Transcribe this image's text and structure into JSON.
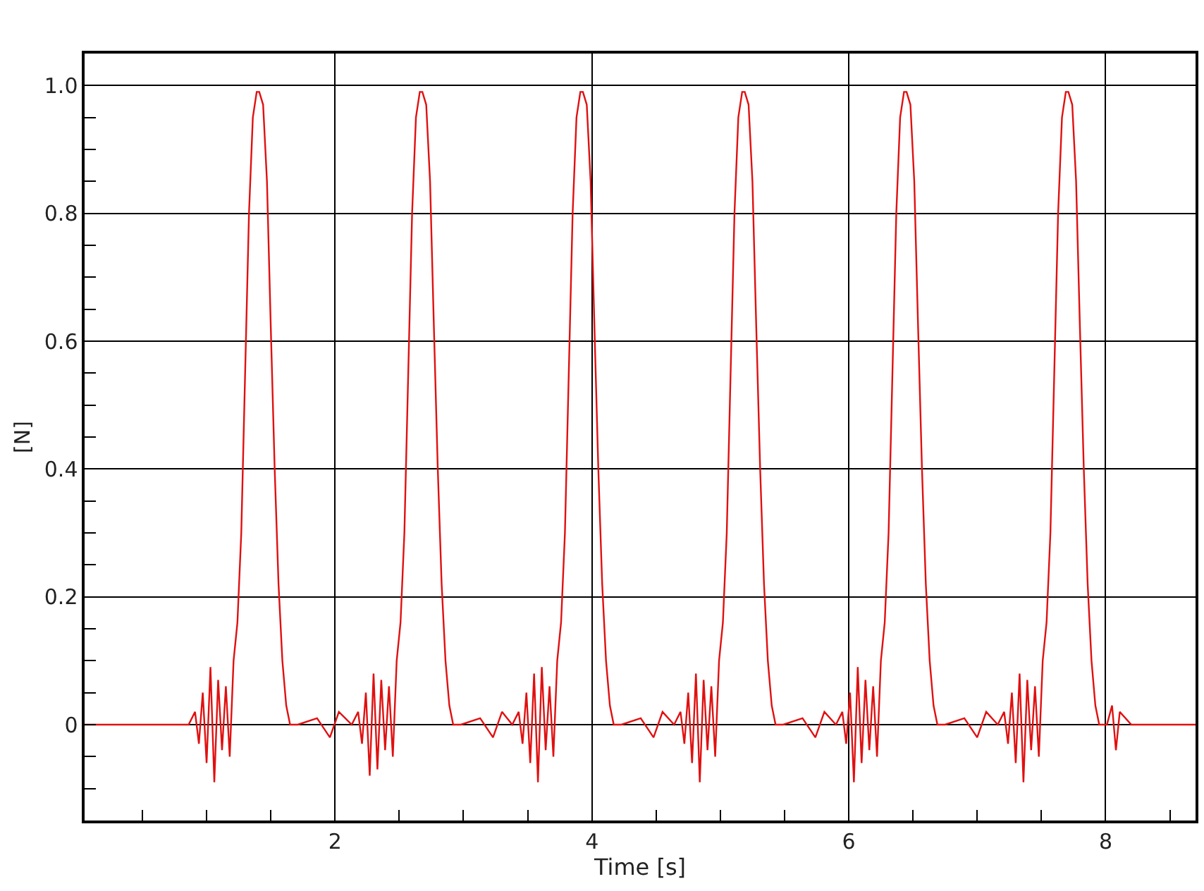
{
  "chart_data": {
    "type": "line",
    "xlabel": "Time [s]",
    "ylabel": "[N]",
    "xlim": [
      0.05,
      8.7
    ],
    "ylim": [
      -0.15,
      1.05
    ],
    "xticks": [
      {
        "value": 0.5,
        "label": null
      },
      {
        "value": 1,
        "label": null
      },
      {
        "value": 1.5,
        "label": null
      },
      2,
      {
        "value": 2.5,
        "label": null
      },
      {
        "value": 3,
        "label": null
      },
      {
        "value": 3.5,
        "label": null
      },
      4,
      {
        "value": 4.5,
        "label": null
      },
      {
        "value": 5,
        "label": null
      },
      {
        "value": 5.5,
        "label": null
      },
      6,
      {
        "value": 6.5,
        "label": null
      },
      {
        "value": 7,
        "label": null
      },
      {
        "value": 7.5,
        "label": null
      },
      8,
      {
        "value": 8.5,
        "label": null
      }
    ],
    "yticks": [
      {
        "value": -0.1,
        "label": null
      },
      {
        "value": -0.05,
        "label": null
      },
      0,
      {
        "value": 0.05,
        "label": null
      },
      {
        "value": 0.1,
        "label": null
      },
      {
        "value": 0.15,
        "label": null
      },
      0.2,
      {
        "value": 0.25,
        "label": null
      },
      {
        "value": 0.3,
        "label": null
      },
      {
        "value": 0.35,
        "label": null
      },
      0.4,
      {
        "value": 0.45,
        "label": null
      },
      {
        "value": 0.5,
        "label": null
      },
      {
        "value": 0.55,
        "label": null
      },
      0.6,
      {
        "value": 0.65,
        "label": null
      },
      {
        "value": 0.7,
        "label": null
      },
      {
        "value": 0.75,
        "label": null
      },
      0.8,
      {
        "value": 0.85,
        "label": null
      },
      {
        "value": 0.9,
        "label": null
      },
      {
        "value": 0.95,
        "label": null
      },
      {
        "value": 1.0,
        "label": "1.0"
      }
    ],
    "grid": true,
    "series": [
      {
        "color": "#e01010",
        "x": [
          0.05,
          0.5,
          0.8,
          0.86,
          0.91,
          0.94,
          0.97,
          1.0,
          1.03,
          1.06,
          1.09,
          1.12,
          1.15,
          1.18,
          1.21,
          1.24,
          1.27,
          1.3,
          1.33,
          1.36,
          1.39,
          1.41,
          1.44,
          1.47,
          1.5,
          1.53,
          1.56,
          1.59,
          1.62,
          1.65,
          1.71,
          1.86,
          1.96,
          2.03,
          2.13,
          2.18,
          2.21,
          2.24,
          2.27,
          2.3,
          2.33,
          2.36,
          2.39,
          2.42,
          2.45,
          2.48,
          2.51,
          2.54,
          2.57,
          2.6,
          2.63,
          2.66,
          2.68,
          2.71,
          2.74,
          2.77,
          2.8,
          2.83,
          2.86,
          2.89,
          2.92,
          2.98,
          3.13,
          3.23,
          3.3,
          3.38,
          3.43,
          3.46,
          3.49,
          3.52,
          3.55,
          3.58,
          3.61,
          3.64,
          3.67,
          3.7,
          3.73,
          3.76,
          3.79,
          3.82,
          3.85,
          3.88,
          3.91,
          3.93,
          3.96,
          3.99,
          4.02,
          4.05,
          4.08,
          4.11,
          4.14,
          4.17,
          4.23,
          4.38,
          4.48,
          4.55,
          4.64,
          4.69,
          4.72,
          4.75,
          4.78,
          4.81,
          4.84,
          4.87,
          4.9,
          4.93,
          4.96,
          4.99,
          5.02,
          5.05,
          5.08,
          5.11,
          5.14,
          5.17,
          5.19,
          5.22,
          5.25,
          5.28,
          5.31,
          5.34,
          5.37,
          5.4,
          5.43,
          5.49,
          5.64,
          5.74,
          5.81,
          5.9,
          5.95,
          5.98,
          6.01,
          6.04,
          6.07,
          6.1,
          6.13,
          6.16,
          6.19,
          6.22,
          6.25,
          6.28,
          6.31,
          6.34,
          6.37,
          6.4,
          6.43,
          6.45,
          6.48,
          6.51,
          6.54,
          6.57,
          6.6,
          6.63,
          6.66,
          6.69,
          6.75,
          6.9,
          7.0,
          7.07,
          7.16,
          7.21,
          7.24,
          7.27,
          7.3,
          7.33,
          7.36,
          7.39,
          7.42,
          7.45,
          7.48,
          7.51,
          7.54,
          7.57,
          7.6,
          7.63,
          7.66,
          7.69,
          7.71,
          7.74,
          7.77,
          7.8,
          7.83,
          7.86,
          7.89,
          7.92,
          7.95,
          8.01,
          8.05,
          8.08,
          8.11,
          8.2,
          8.7
        ],
        "values": [
          0,
          0,
          0,
          0,
          0.02,
          -0.03,
          0.05,
          -0.06,
          0.09,
          -0.09,
          0.07,
          -0.04,
          0.06,
          -0.05,
          0.1,
          0.16,
          0.3,
          0.55,
          0.8,
          0.95,
          0.99,
          0.99,
          0.97,
          0.85,
          0.62,
          0.4,
          0.22,
          0.1,
          0.03,
          0,
          0,
          0.01,
          -0.02,
          0.02,
          0,
          0.02,
          -0.03,
          0.05,
          -0.08,
          0.08,
          -0.07,
          0.07,
          -0.04,
          0.06,
          -0.05,
          0.1,
          0.16,
          0.3,
          0.55,
          0.8,
          0.95,
          0.99,
          0.99,
          0.97,
          0.85,
          0.62,
          0.4,
          0.22,
          0.1,
          0.03,
          0,
          0,
          0.01,
          -0.02,
          0.02,
          0,
          0.02,
          -0.03,
          0.05,
          -0.06,
          0.08,
          -0.09,
          0.09,
          -0.04,
          0.06,
          -0.05,
          0.1,
          0.16,
          0.3,
          0.55,
          0.8,
          0.95,
          0.99,
          0.99,
          0.97,
          0.85,
          0.62,
          0.4,
          0.22,
          0.1,
          0.03,
          0,
          0,
          0.01,
          -0.02,
          0.02,
          0,
          0.02,
          -0.03,
          0.05,
          -0.06,
          0.08,
          -0.09,
          0.07,
          -0.04,
          0.06,
          -0.05,
          0.1,
          0.16,
          0.3,
          0.55,
          0.8,
          0.95,
          0.99,
          0.99,
          0.97,
          0.85,
          0.62,
          0.4,
          0.22,
          0.1,
          0.03,
          0,
          0,
          0.01,
          -0.02,
          0.02,
          0,
          0.02,
          -0.03,
          0.05,
          -0.09,
          0.09,
          -0.06,
          0.07,
          -0.04,
          0.06,
          -0.05,
          0.1,
          0.16,
          0.3,
          0.55,
          0.8,
          0.95,
          0.99,
          0.99,
          0.97,
          0.85,
          0.62,
          0.4,
          0.22,
          0.1,
          0.03,
          0,
          0,
          0.01,
          -0.02,
          0.02,
          0,
          0.02,
          -0.03,
          0.05,
          -0.06,
          0.08,
          -0.09,
          0.07,
          -0.04,
          0.06,
          -0.05,
          0.1,
          0.16,
          0.3,
          0.55,
          0.8,
          0.95,
          0.99,
          0.99,
          0.97,
          0.85,
          0.62,
          0.4,
          0.22,
          0.1,
          0.03,
          0,
          0,
          0.03,
          -0.04,
          0.02,
          0,
          0
        ]
      }
    ]
  }
}
